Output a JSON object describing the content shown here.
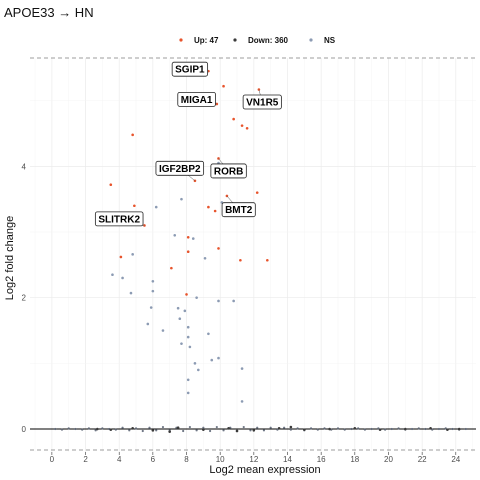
{
  "chart_data": {
    "type": "scatter",
    "title": "APOE33 → HN",
    "xlabel": "Log2 mean expression",
    "ylabel": "Log2 fold change",
    "xlim": [
      -1.3,
      25.2
    ],
    "ylim": [
      -0.35,
      5.65
    ],
    "x_ticks": [
      0,
      2,
      4,
      6,
      8,
      10,
      12,
      14,
      16,
      18,
      20,
      22,
      24
    ],
    "y_ticks": [
      0,
      2,
      4
    ],
    "threshold_lines_y": [
      5.65,
      -0.32
    ],
    "grid": true,
    "legend_position": "top",
    "colors": {
      "up": "#e8542c",
      "down": "#3a3a3a",
      "ns": "#8c9bb3"
    },
    "legend": [
      {
        "key": "up",
        "label": "Up: 47"
      },
      {
        "key": "down",
        "label": "Down: 360"
      },
      {
        "key": "ns",
        "label": "NS"
      }
    ],
    "series": [
      {
        "name": "Up: 47",
        "key": "up",
        "points": [
          [
            9.3,
            5.45
          ],
          [
            10.2,
            5.22
          ],
          [
            12.3,
            5.17
          ],
          [
            9.8,
            4.95
          ],
          [
            10.8,
            4.72
          ],
          [
            11.3,
            4.62
          ],
          [
            11.6,
            4.58
          ],
          [
            4.8,
            4.48
          ],
          [
            3.5,
            3.72
          ],
          [
            4.9,
            3.4
          ],
          [
            9.9,
            4.12
          ],
          [
            8.5,
            3.78
          ],
          [
            12.2,
            3.6
          ],
          [
            10.4,
            3.55
          ],
          [
            5.5,
            3.1
          ],
          [
            9.3,
            3.38
          ],
          [
            9.7,
            3.32
          ],
          [
            4.1,
            2.62
          ],
          [
            12.8,
            2.57
          ],
          [
            11.2,
            2.57
          ],
          [
            7.1,
            2.45
          ],
          [
            8.1,
            2.92
          ],
          [
            9.9,
            2.75
          ],
          [
            8.1,
            2.7
          ],
          [
            8.0,
            2.05
          ]
        ]
      },
      {
        "name": "Down: 360",
        "key": "down",
        "points": [
          [
            2.7,
            0.0
          ],
          [
            3.5,
            -0.01
          ],
          [
            4.8,
            0.01
          ],
          [
            6.0,
            -0.02
          ],
          [
            7.5,
            0.02
          ],
          [
            9.0,
            -0.01
          ],
          [
            10.5,
            0.01
          ],
          [
            12.0,
            -0.02
          ],
          [
            13.5,
            0.01
          ],
          [
            15.0,
            -0.01
          ],
          [
            16.5,
            0.0
          ],
          [
            18.0,
            0.01
          ],
          [
            19.5,
            -0.01
          ],
          [
            21.0,
            0.0
          ],
          [
            22.5,
            0.01
          ],
          [
            23.5,
            -0.01
          ],
          [
            24.2,
            0.0
          ],
          [
            7.0,
            -0.04
          ],
          [
            11.0,
            -0.03
          ],
          [
            14.2,
            0.03
          ]
        ]
      },
      {
        "name": "NS",
        "key": "ns",
        "points": [
          [
            3.6,
            2.35
          ],
          [
            4.2,
            2.3
          ],
          [
            4.8,
            2.66
          ],
          [
            4.7,
            2.07
          ],
          [
            6.2,
            3.38
          ],
          [
            6.0,
            2.25
          ],
          [
            5.9,
            1.85
          ],
          [
            6.0,
            2.1
          ],
          [
            5.7,
            1.6
          ],
          [
            6.6,
            1.5
          ],
          [
            7.7,
            3.5
          ],
          [
            7.5,
            1.84
          ],
          [
            7.3,
            2.95
          ],
          [
            8.4,
            2.9
          ],
          [
            7.9,
            1.8
          ],
          [
            7.6,
            1.68
          ],
          [
            8.1,
            1.55
          ],
          [
            8.1,
            1.4
          ],
          [
            7.7,
            1.3
          ],
          [
            8.2,
            1.25
          ],
          [
            8.6,
            2.0
          ],
          [
            9.1,
            2.6
          ],
          [
            9.3,
            1.45
          ],
          [
            9.9,
            1.95
          ],
          [
            10.8,
            1.95
          ],
          [
            9.5,
            1.05
          ],
          [
            9.9,
            1.08
          ],
          [
            8.5,
            1.0
          ],
          [
            8.7,
            0.9
          ],
          [
            8.1,
            0.75
          ],
          [
            8.1,
            0.55
          ],
          [
            11.3,
            0.92
          ],
          [
            11.3,
            0.42
          ],
          [
            9.7,
            3.9
          ],
          [
            9.9,
            4.05
          ],
          [
            10.1,
            3.45
          ]
        ]
      }
    ],
    "baseline_points": [
      [
        0.2,
        0.0
      ],
      [
        0.6,
        -0.01
      ],
      [
        1.0,
        0.01
      ],
      [
        1.4,
        0.0
      ],
      [
        1.8,
        -0.01
      ],
      [
        2.2,
        0.01
      ],
      [
        2.6,
        -0.02
      ],
      [
        3.0,
        0.01
      ],
      [
        3.4,
        0.0
      ],
      [
        3.8,
        -0.01
      ],
      [
        4.2,
        0.02
      ],
      [
        4.6,
        -0.02
      ],
      [
        5.0,
        0.01
      ],
      [
        5.4,
        -0.03
      ],
      [
        5.8,
        0.02
      ],
      [
        6.2,
        -0.02
      ],
      [
        6.6,
        0.03
      ],
      [
        7.0,
        -0.02
      ],
      [
        7.4,
        0.02
      ],
      [
        7.8,
        -0.03
      ],
      [
        8.2,
        0.03
      ],
      [
        8.6,
        -0.02
      ],
      [
        9.0,
        0.02
      ],
      [
        9.4,
        -0.03
      ],
      [
        9.8,
        0.03
      ],
      [
        10.2,
        -0.02
      ],
      [
        10.6,
        0.02
      ],
      [
        11.0,
        -0.03
      ],
      [
        11.4,
        0.03
      ],
      [
        11.8,
        -0.02
      ],
      [
        12.2,
        0.02
      ],
      [
        12.6,
        -0.02
      ],
      [
        13.0,
        0.02
      ],
      [
        13.4,
        -0.01
      ],
      [
        13.8,
        0.02
      ],
      [
        14.2,
        -0.01
      ],
      [
        14.6,
        0.01
      ],
      [
        15.0,
        -0.02
      ],
      [
        15.4,
        0.01
      ],
      [
        15.8,
        -0.01
      ],
      [
        16.2,
        0.01
      ],
      [
        16.6,
        -0.01
      ],
      [
        17.0,
        0.01
      ],
      [
        17.4,
        -0.01
      ],
      [
        17.8,
        0.0
      ],
      [
        18.2,
        0.01
      ],
      [
        18.6,
        -0.01
      ],
      [
        19.0,
        0.0
      ],
      [
        19.4,
        0.01
      ],
      [
        19.8,
        -0.01
      ],
      [
        20.2,
        0.0
      ],
      [
        20.6,
        0.01
      ],
      [
        21.0,
        -0.01
      ],
      [
        21.4,
        0.0
      ],
      [
        21.8,
        0.01
      ],
      [
        22.2,
        0.0
      ],
      [
        22.6,
        -0.01
      ],
      [
        23.0,
        0.0
      ],
      [
        23.4,
        0.01
      ],
      [
        23.8,
        0.0
      ],
      [
        24.2,
        -0.01
      ],
      [
        24.6,
        0.0
      ]
    ],
    "labels": [
      {
        "text": "SGIP1",
        "x": 9.3,
        "y": 5.45,
        "lx": 8.2,
        "ly": 5.48
      },
      {
        "text": "MIGA1",
        "x": 9.8,
        "y": 4.95,
        "lx": 8.6,
        "ly": 5.02
      },
      {
        "text": "VN1R5",
        "x": 12.3,
        "y": 5.17,
        "lx": 12.5,
        "ly": 4.98
      },
      {
        "text": "IGF2BP2",
        "x": 8.5,
        "y": 3.78,
        "lx": 7.6,
        "ly": 3.97
      },
      {
        "text": "RORB",
        "x": 9.9,
        "y": 4.12,
        "lx": 10.5,
        "ly": 3.93
      },
      {
        "text": "BMT2",
        "x": 10.4,
        "y": 3.55,
        "lx": 11.1,
        "ly": 3.34
      },
      {
        "text": "SLITRK2",
        "x": 5.5,
        "y": 3.1,
        "lx": 4.0,
        "ly": 3.2
      }
    ]
  }
}
